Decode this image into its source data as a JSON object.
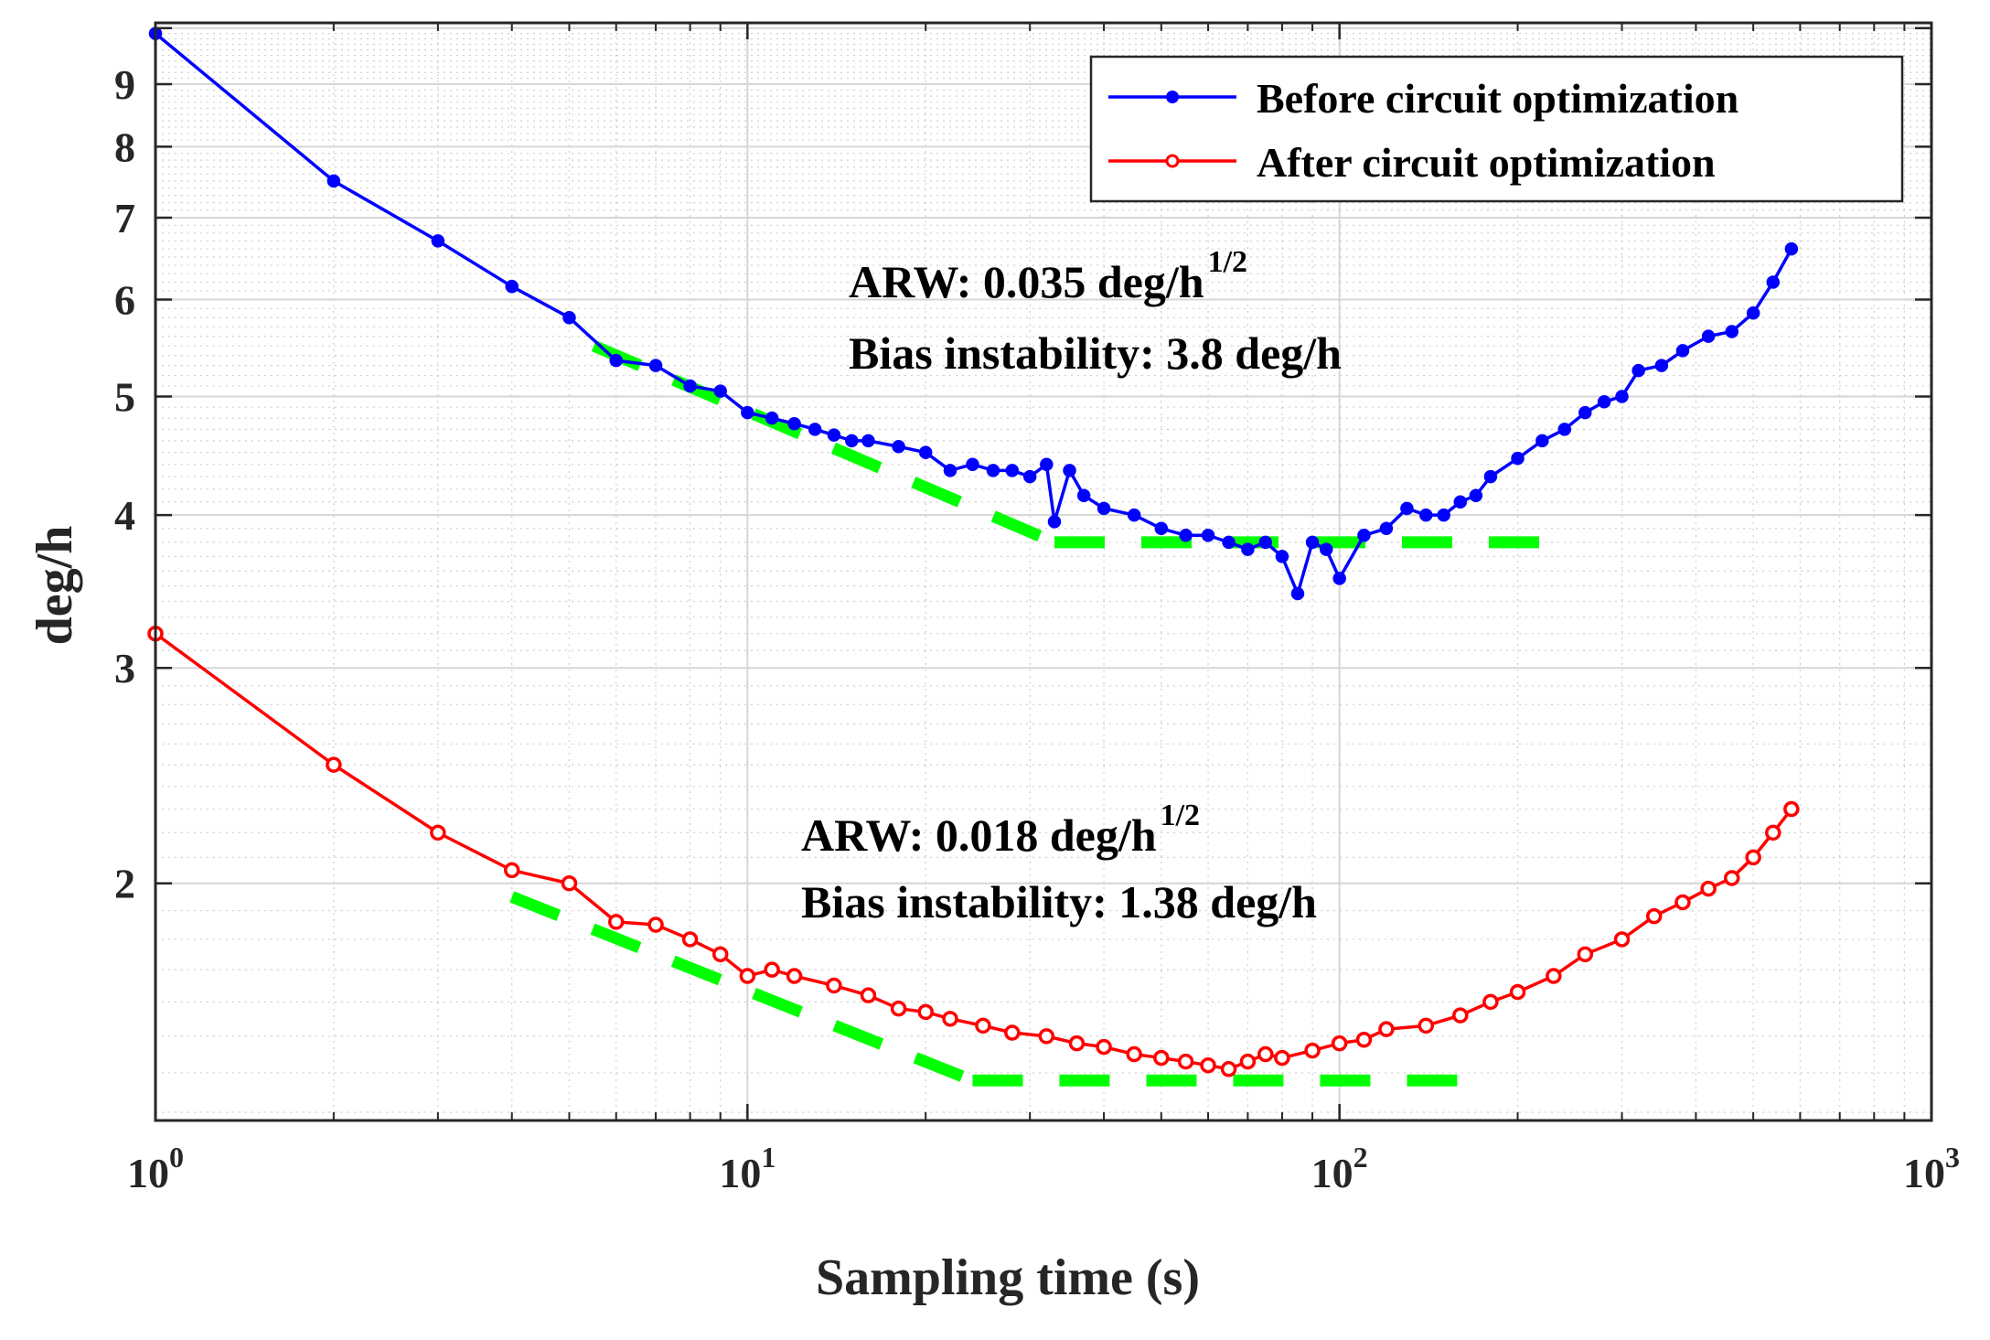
{
  "chart_data": {
    "type": "line",
    "x_scale": "log",
    "y_scale": "log",
    "xlabel": "Sampling time (s)",
    "ylabel": "deg/h",
    "xlim": [
      1,
      1000
    ],
    "ylim": [
      1.28,
      10.1
    ],
    "grid": true,
    "minor_grid": true,
    "legend_position": "top-right",
    "x_ticks": [
      {
        "value": 1,
        "base": "10",
        "exp": "0"
      },
      {
        "value": 10,
        "base": "10",
        "exp": "1"
      },
      {
        "value": 100,
        "base": "10",
        "exp": "2"
      },
      {
        "value": 1000,
        "base": "10",
        "exp": "3"
      }
    ],
    "y_ticks": [
      {
        "value": 2,
        "label": "2"
      },
      {
        "value": 3,
        "label": "3"
      },
      {
        "value": 4,
        "label": "4"
      },
      {
        "value": 5,
        "label": "5"
      },
      {
        "value": 6,
        "label": "6"
      },
      {
        "value": 7,
        "label": "7"
      },
      {
        "value": 8,
        "label": "8"
      },
      {
        "value": 9,
        "label": "9"
      }
    ],
    "series": [
      {
        "name": "Before circuit optimization",
        "color": "#0000ff",
        "marker": "filled-dot",
        "points": [
          [
            1,
            9.9
          ],
          [
            2,
            7.5
          ],
          [
            3,
            6.7
          ],
          [
            4,
            6.15
          ],
          [
            5,
            5.8
          ],
          [
            6,
            5.35
          ],
          [
            7,
            5.3
          ],
          [
            8,
            5.1
          ],
          [
            9,
            5.05
          ],
          [
            10,
            4.85
          ],
          [
            11,
            4.8
          ],
          [
            12,
            4.75
          ],
          [
            13,
            4.7
          ],
          [
            14,
            4.65
          ],
          [
            15,
            4.6
          ],
          [
            16,
            4.6
          ],
          [
            18,
            4.55
          ],
          [
            20,
            4.5
          ],
          [
            22,
            4.35
          ],
          [
            24,
            4.4
          ],
          [
            26,
            4.35
          ],
          [
            28,
            4.35
          ],
          [
            30,
            4.3
          ],
          [
            32,
            4.4
          ],
          [
            33,
            3.95
          ],
          [
            35,
            4.35
          ],
          [
            37,
            4.15
          ],
          [
            40,
            4.05
          ],
          [
            45,
            4.0
          ],
          [
            50,
            3.9
          ],
          [
            55,
            3.85
          ],
          [
            60,
            3.85
          ],
          [
            65,
            3.8
          ],
          [
            70,
            3.75
          ],
          [
            75,
            3.8
          ],
          [
            80,
            3.7
          ],
          [
            85,
            3.45
          ],
          [
            90,
            3.8
          ],
          [
            95,
            3.75
          ],
          [
            100,
            3.55
          ],
          [
            110,
            3.85
          ],
          [
            120,
            3.9
          ],
          [
            130,
            4.05
          ],
          [
            140,
            4.0
          ],
          [
            150,
            4.0
          ],
          [
            160,
            4.1
          ],
          [
            170,
            4.15
          ],
          [
            180,
            4.3
          ],
          [
            200,
            4.45
          ],
          [
            220,
            4.6
          ],
          [
            240,
            4.7
          ],
          [
            260,
            4.85
          ],
          [
            280,
            4.95
          ],
          [
            300,
            5.0
          ],
          [
            320,
            5.25
          ],
          [
            350,
            5.3
          ],
          [
            380,
            5.45
          ],
          [
            420,
            5.6
          ],
          [
            460,
            5.65
          ],
          [
            500,
            5.85
          ],
          [
            540,
            6.2
          ],
          [
            580,
            6.6
          ]
        ]
      },
      {
        "name": "After circuit optimization",
        "color": "#ff0000",
        "marker": "hollow-circle",
        "points": [
          [
            1,
            3.2
          ],
          [
            2,
            2.5
          ],
          [
            3,
            2.2
          ],
          [
            4,
            2.05
          ],
          [
            5,
            2.0
          ],
          [
            6,
            1.86
          ],
          [
            7,
            1.85
          ],
          [
            8,
            1.8
          ],
          [
            9,
            1.75
          ],
          [
            10,
            1.68
          ],
          [
            11,
            1.7
          ],
          [
            12,
            1.68
          ],
          [
            14,
            1.65
          ],
          [
            16,
            1.62
          ],
          [
            18,
            1.58
          ],
          [
            20,
            1.57
          ],
          [
            22,
            1.55
          ],
          [
            25,
            1.53
          ],
          [
            28,
            1.51
          ],
          [
            32,
            1.5
          ],
          [
            36,
            1.48
          ],
          [
            40,
            1.47
          ],
          [
            45,
            1.45
          ],
          [
            50,
            1.44
          ],
          [
            55,
            1.43
          ],
          [
            60,
            1.42
          ],
          [
            65,
            1.41
          ],
          [
            70,
            1.43
          ],
          [
            75,
            1.45
          ],
          [
            80,
            1.44
          ],
          [
            90,
            1.46
          ],
          [
            100,
            1.48
          ],
          [
            110,
            1.49
          ],
          [
            120,
            1.52
          ],
          [
            140,
            1.53
          ],
          [
            160,
            1.56
          ],
          [
            180,
            1.6
          ],
          [
            200,
            1.63
          ],
          [
            230,
            1.68
          ],
          [
            260,
            1.75
          ],
          [
            300,
            1.8
          ],
          [
            340,
            1.88
          ],
          [
            380,
            1.93
          ],
          [
            420,
            1.98
          ],
          [
            460,
            2.02
          ],
          [
            500,
            2.1
          ],
          [
            540,
            2.2
          ],
          [
            580,
            2.3
          ]
        ]
      }
    ],
    "fit_lines": [
      {
        "name": "ARW fit before",
        "color": "#00ff00",
        "style": "dashed",
        "points": [
          [
            5.5,
            5.5
          ],
          [
            33,
            3.8
          ]
        ]
      },
      {
        "name": "Bias instability fit before",
        "color": "#00ff00",
        "style": "dashed",
        "points": [
          [
            33,
            3.8
          ],
          [
            230,
            3.8
          ]
        ]
      },
      {
        "name": "ARW fit after",
        "color": "#00ff00",
        "style": "dashed",
        "points": [
          [
            4,
            1.95
          ],
          [
            24,
            1.38
          ]
        ]
      },
      {
        "name": "Bias instability fit after",
        "color": "#00ff00",
        "style": "dashed",
        "points": [
          [
            24,
            1.38
          ],
          [
            165,
            1.38
          ]
        ]
      }
    ],
    "annotations": [
      {
        "id": "before",
        "arw_label": "ARW: 0.035 deg/h",
        "arw_exponent": "1/2",
        "bias_label": "Bias instability: 3.8 deg/h"
      },
      {
        "id": "after",
        "arw_label": "ARW: 0.018 deg/h",
        "arw_exponent": "1/2",
        "bias_label": "Bias instability: 1.38 deg/h"
      }
    ]
  }
}
